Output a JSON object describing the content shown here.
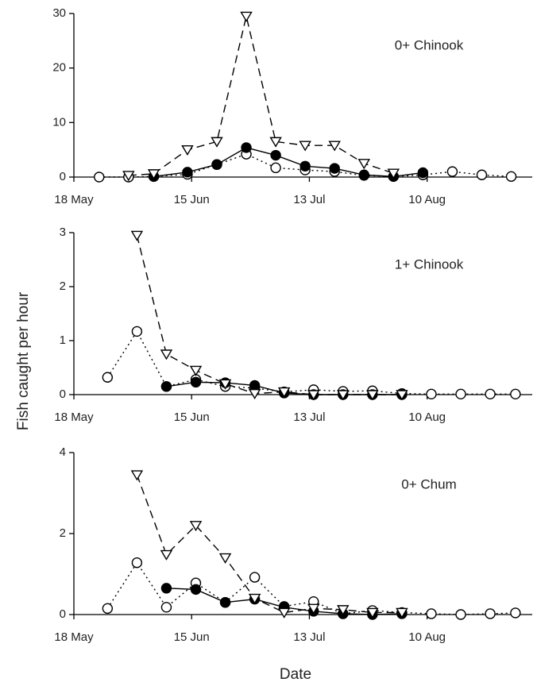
{
  "chart_data": [
    {
      "type": "line",
      "annotation": "0+ Chinook",
      "x": [
        "24 May",
        "31 May",
        "6 Jun",
        "14 Jun",
        "21 Jun",
        "28 Jun",
        "5 Jul",
        "12 Jul",
        "19 Jul",
        "26 Jul",
        "2 Aug",
        "9 Aug",
        "16 Aug",
        "23 Aug",
        "30 Aug"
      ],
      "xlim": [
        "18 May",
        "4 Sep"
      ],
      "xticks": [
        "18 May",
        "15 Jun",
        "13 Jul",
        "10 Aug"
      ],
      "ylim": [
        0,
        30
      ],
      "yticks": [
        0,
        10,
        20,
        30
      ],
      "series": [
        {
          "marker": "open-circle",
          "dash": "dotted",
          "color": "#000000",
          "values": [
            0,
            0,
            0.1,
            0.5,
            2.3,
            4.2,
            1.7,
            1.3,
            1.0,
            0.3,
            0.1,
            0.4,
            1.0,
            0.4,
            0.1
          ]
        },
        {
          "marker": "filled-circle",
          "dash": "solid",
          "color": "#000000",
          "values": [
            null,
            null,
            0.1,
            0.9,
            2.3,
            5.4,
            4.0,
            2.0,
            1.6,
            0.4,
            0.1,
            0.8,
            null,
            null,
            null
          ]
        },
        {
          "marker": "triangle",
          "dash": "dashed",
          "color": "#000000",
          "values": [
            null,
            0.3,
            0.6,
            5.0,
            6.5,
            29.5,
            6.5,
            5.8,
            5.8,
            2.5,
            0.7,
            null,
            null,
            null,
            null
          ]
        }
      ]
    },
    {
      "type": "line",
      "annotation": "1+ Chinook",
      "ylabel": "Fish caught per hour",
      "x": [
        "26 May",
        "2 Jun",
        "9 Jun",
        "16 Jun",
        "23 Jun",
        "30 Jun",
        "7 Jul",
        "14 Jul",
        "21 Jul",
        "28 Jul",
        "4 Aug",
        "11 Aug",
        "18 Aug",
        "25 Aug",
        "31 Aug"
      ],
      "xlim": [
        "18 May",
        "4 Sep"
      ],
      "xticks": [
        "18 May",
        "15 Jun",
        "13 Jul",
        "10 Aug"
      ],
      "ylim": [
        0,
        3
      ],
      "yticks": [
        0,
        1,
        2,
        3
      ],
      "series": [
        {
          "marker": "open-circle",
          "dash": "dotted",
          "color": "#000000",
          "values": [
            0.32,
            1.17,
            0.15,
            0.28,
            0.15,
            0.12,
            0.05,
            0.09,
            0.06,
            0.07,
            0.02,
            0.01,
            0.01,
            0.01,
            0.01
          ]
        },
        {
          "marker": "filled-circle",
          "dash": "solid",
          "color": "#000000",
          "values": [
            null,
            null,
            0.15,
            0.23,
            0.22,
            0.17,
            0.03,
            0,
            0,
            0,
            0,
            null,
            null,
            null,
            null
          ]
        },
        {
          "marker": "triangle",
          "dash": "dashed",
          "color": "#000000",
          "values": [
            null,
            2.95,
            0.75,
            0.45,
            0.2,
            0.02,
            0.05,
            0,
            0,
            0,
            0,
            null,
            null,
            null,
            null
          ]
        }
      ]
    },
    {
      "type": "line",
      "annotation": "0+ Chum",
      "xlabel": "Date",
      "x": [
        "26 May",
        "2 Jun",
        "9 Jun",
        "16 Jun",
        "23 Jun",
        "30 Jun",
        "7 Jul",
        "14 Jul",
        "21 Jul",
        "28 Jul",
        "4 Aug",
        "11 Aug",
        "18 Aug",
        "25 Aug",
        "31 Aug"
      ],
      "xlim": [
        "18 May",
        "4 Sep"
      ],
      "xticks": [
        "18 May",
        "15 Jun",
        "13 Jul",
        "10 Aug"
      ],
      "ylim": [
        0,
        4
      ],
      "yticks": [
        0,
        2,
        4
      ],
      "series": [
        {
          "marker": "open-circle",
          "dash": "dotted",
          "color": "#000000",
          "values": [
            0.15,
            1.28,
            0.18,
            0.78,
            0.3,
            0.92,
            0.2,
            0.32,
            0.02,
            0.1,
            0.05,
            0.02,
            0,
            0.02,
            0.04
          ]
        },
        {
          "marker": "filled-circle",
          "dash": "solid",
          "color": "#000000",
          "values": [
            null,
            null,
            0.65,
            0.62,
            0.3,
            0.38,
            0.18,
            0.08,
            0.02,
            0,
            0.02,
            null,
            null,
            null,
            null
          ]
        },
        {
          "marker": "triangle",
          "dash": "dashed",
          "color": "#000000",
          "values": [
            null,
            3.45,
            1.48,
            2.2,
            1.4,
            0.4,
            0.05,
            0.15,
            0.12,
            0.05,
            0.05,
            null,
            null,
            null,
            null
          ]
        }
      ]
    }
  ]
}
